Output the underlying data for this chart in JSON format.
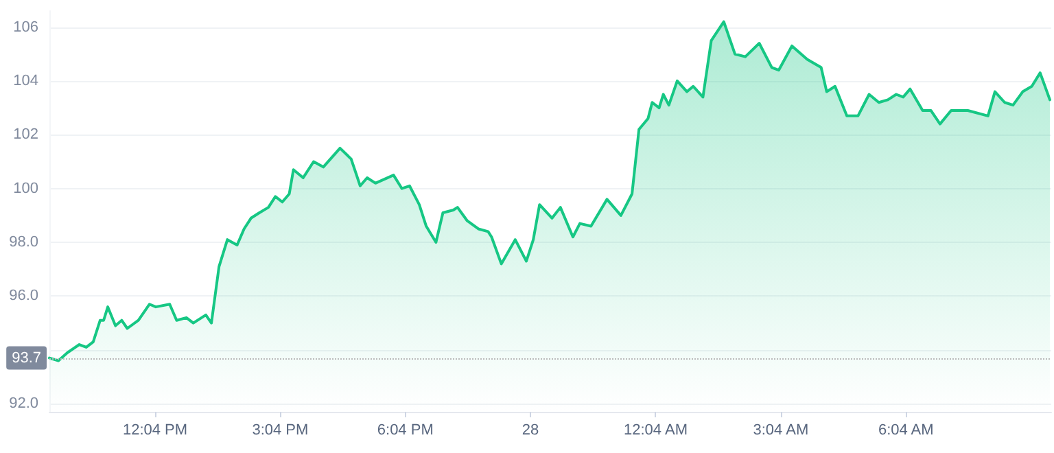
{
  "chart_data": {
    "type": "area",
    "x": [
      "--01-27T09:32",
      "--01-27T09:45",
      "--01-27T09:58",
      "--01-27T10:15",
      "--01-27T10:25",
      "--01-27T10:35",
      "--01-27T10:45",
      "--01-27T10:50",
      "--01-27T10:56",
      "--01-27T11:07",
      "--01-27T11:16",
      "--01-27T11:24",
      "--01-27T11:40",
      "--01-27T11:56",
      "--01-27T12:05",
      "--01-27T12:25",
      "--01-27T12:35",
      "--01-27T12:49",
      "--01-27T12:59",
      "--01-27T13:17",
      "--01-27T13:25",
      "--01-27T13:36",
      "--01-27T13:48",
      "--01-27T14:02",
      "--01-27T14:12",
      "--01-27T14:22",
      "--01-27T14:34",
      "--01-27T14:47",
      "--01-27T14:57",
      "--01-27T15:07",
      "--01-27T15:17",
      "--01-27T15:23",
      "--01-27T15:37",
      "--01-27T15:52",
      "--01-27T16:06",
      "--01-27T16:30",
      "--01-27T16:46",
      "--01-27T16:59",
      "--01-27T17:09",
      "--01-27T17:21",
      "--01-27T17:47",
      "--01-27T17:59",
      "--01-27T18:10",
      "--01-27T18:24",
      "--01-27T18:34",
      "--01-27T18:48",
      "--01-27T18:58",
      "--01-27T19:13",
      "--01-27T19:19",
      "--01-27T19:33",
      "--01-27T19:49",
      "--01-27T20:03",
      "--01-27T20:08",
      "--01-27T20:22",
      "--01-27T20:42",
      "--01-27T20:58",
      "--01-27T21:08",
      "--01-27T21:17",
      "--01-27T21:35",
      "--01-27T21:47",
      "--01-27T22:05",
      "--01-27T22:15",
      "--01-27T22:31",
      "--01-27T22:54",
      "--01-27T23:14",
      "--01-27T23:30",
      "--01-27T23:40",
      "--01-27T23:53",
      "--01-27T23:59",
      "--01-28T00:09",
      "--01-28T00:15",
      "--01-28T00:23",
      "--01-28T00:35",
      "--01-28T00:49",
      "--01-28T00:58",
      "--01-28T01:12",
      "--01-28T01:24",
      "--01-28T01:42",
      "--01-28T01:58",
      "--01-28T02:13",
      "--01-28T02:33",
      "--01-28T02:51",
      "--01-28T03:01",
      "--01-28T03:20",
      "--01-28T03:42",
      "--01-28T04:02",
      "--01-28T04:10",
      "--01-28T04:22",
      "--01-28T04:39",
      "--01-28T04:55",
      "--01-28T05:11",
      "--01-28T05:25",
      "--01-28T05:38",
      "--01-28T05:50",
      "--01-28T06:00",
      "--01-28T06:10",
      "--01-28T06:28",
      "--01-28T06:40",
      "--01-28T06:53",
      "--01-28T07:09",
      "--01-28T07:33",
      "--01-28T08:02",
      "--01-28T08:12",
      "--01-28T08:26",
      "--01-28T08:38",
      "--01-28T08:52",
      "--01-28T09:05",
      "--01-28T09:17",
      "--01-28T09:31"
    ],
    "series": [
      {
        "color": "#16c784",
        "values": [
          93.7,
          93.6,
          93.9,
          94.2,
          94.1,
          94.3,
          95.1,
          95.1,
          95.6,
          94.9,
          95.1,
          94.8,
          95.1,
          95.7,
          95.6,
          95.7,
          95.1,
          95.2,
          95.0,
          95.3,
          95.0,
          97.1,
          98.1,
          97.9,
          98.5,
          98.9,
          99.1,
          99.3,
          99.7,
          99.5,
          99.8,
          100.7,
          100.4,
          101.0,
          100.8,
          101.5,
          101.1,
          100.1,
          100.4,
          100.2,
          100.5,
          100.0,
          100.1,
          99.4,
          98.6,
          98.0,
          99.1,
          99.2,
          99.3,
          98.8,
          98.5,
          98.4,
          98.2,
          97.2,
          98.1,
          97.3,
          98.1,
          99.4,
          98.9,
          99.3,
          98.2,
          98.7,
          98.6,
          99.6,
          99.0,
          99.8,
          102.2,
          102.6,
          103.2,
          103.0,
          103.5,
          103.1,
          104.0,
          103.6,
          103.8,
          103.4,
          105.5,
          106.2,
          105.0,
          104.9,
          105.4,
          104.5,
          104.4,
          105.3,
          104.8,
          104.5,
          103.6,
          103.8,
          102.7,
          102.7,
          103.5,
          103.2,
          103.3,
          103.5,
          103.4,
          103.7,
          102.9,
          102.9,
          102.4,
          102.9,
          102.9,
          102.7,
          103.6,
          103.2,
          103.1,
          103.6,
          103.8,
          104.3,
          103.3
        ]
      }
    ],
    "xlim": [
      "--01-27T09:32",
      "--01-28T09:33"
    ],
    "xticks": [
      {
        "value": "--01-27T12:04",
        "label": "12:04 PM"
      },
      {
        "value": "--01-27T15:04",
        "label": "3:04 PM"
      },
      {
        "value": "--01-27T18:04",
        "label": "6:04 PM"
      },
      {
        "value": "--01-27T21:04",
        "label": "28"
      },
      {
        "value": "--01-28T00:04",
        "label": "12:04 AM"
      },
      {
        "value": "--01-28T03:04",
        "label": "3:04 AM"
      },
      {
        "value": "--01-28T06:04",
        "label": "6:04 AM"
      }
    ],
    "ylim": [
      91.7,
      106.6
    ],
    "yticks": [
      {
        "value": 92,
        "label": "92.0"
      },
      {
        "value": 94,
        "label": null
      },
      {
        "value": 96,
        "label": "96.0"
      },
      {
        "value": 98,
        "label": "98.0"
      },
      100,
      102,
      104,
      106
    ],
    "ref_lines": [
      {
        "axis": "y",
        "value": 93.7,
        "label": "93.7",
        "color": "#bbbbbb",
        "line_style": "dotted"
      }
    ],
    "grid": "y",
    "marker": "none",
    "line_style": "solid"
  }
}
